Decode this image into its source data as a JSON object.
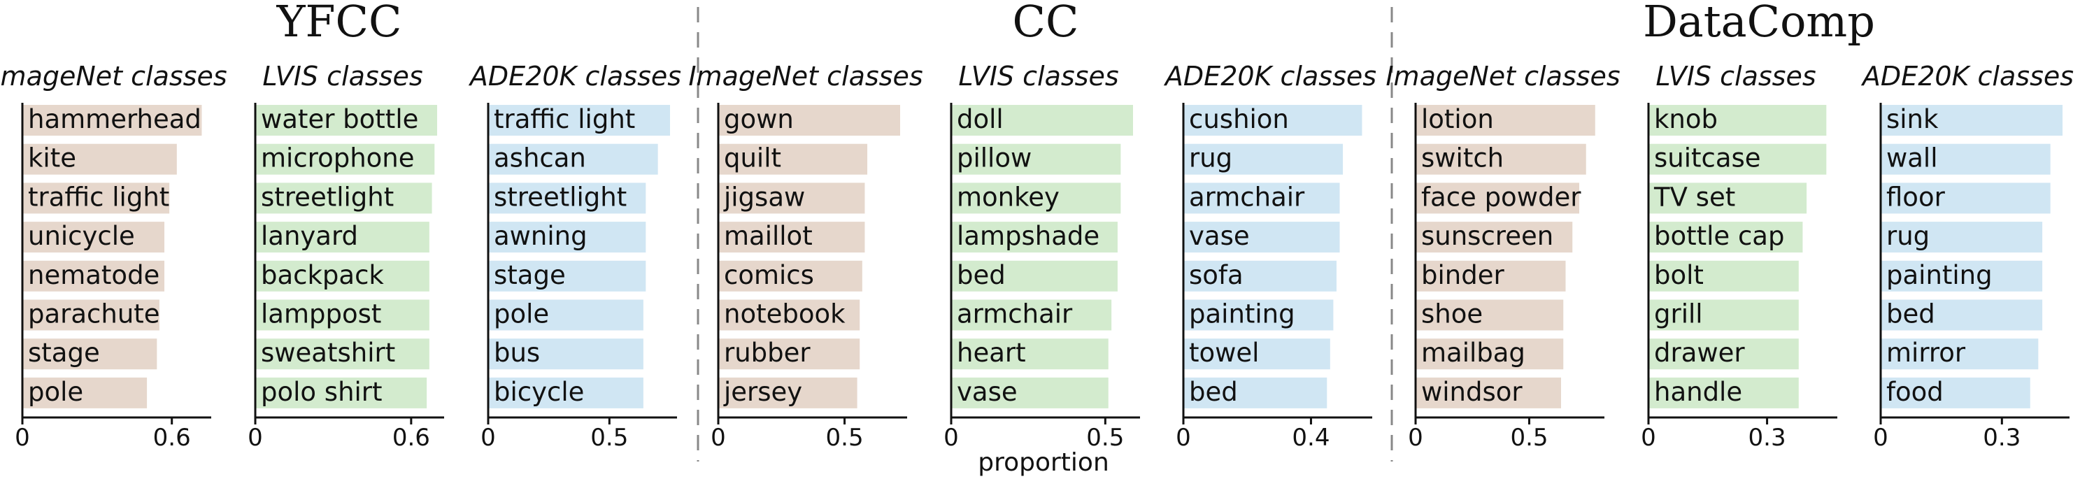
{
  "xlabel": "proportion",
  "colors": {
    "ImageNet": "#e6d7cc",
    "LVIS": "#d3ebce",
    "ADE20K": "#d0e6f3",
    "divider": "#888888"
  },
  "groups": [
    {
      "title": "YFCC"
    },
    {
      "title": "CC"
    },
    {
      "title": "DataComp"
    }
  ],
  "chart_data": [
    {
      "type": "bar",
      "group": "YFCC",
      "title": "ImageNet classes",
      "palette": "ImageNet",
      "ticks": [
        0,
        0.6
      ],
      "tick_labels": [
        "0",
        "0.6"
      ],
      "xlim": [
        0,
        0.73
      ],
      "categories": [
        "hammerhead",
        "kite",
        "traffic light",
        "unicycle",
        "nematode",
        "parachute",
        "stage",
        "pole"
      ],
      "values": [
        0.72,
        0.62,
        0.59,
        0.57,
        0.57,
        0.55,
        0.54,
        0.5
      ]
    },
    {
      "type": "bar",
      "group": "YFCC",
      "title": "LVIS classes",
      "palette": "LVIS",
      "ticks": [
        0,
        0.6
      ],
      "tick_labels": [
        "0",
        "0.6"
      ],
      "xlim": [
        0,
        0.7
      ],
      "categories": [
        "water bottle",
        "microphone",
        "streetlight",
        "lanyard",
        "backpack",
        "lamppost",
        "sweatshirt",
        "polo shirt"
      ],
      "values": [
        0.7,
        0.69,
        0.68,
        0.67,
        0.67,
        0.67,
        0.67,
        0.66
      ]
    },
    {
      "type": "bar",
      "group": "YFCC",
      "title": "ADE20K classes",
      "palette": "ADE20K",
      "ticks": [
        0,
        0.5
      ],
      "tick_labels": [
        "0",
        "0.5"
      ],
      "xlim": [
        0,
        0.75
      ],
      "categories": [
        "traffic light",
        "ashcan",
        "streetlight",
        "awning",
        "stage",
        "pole",
        "bus",
        "bicycle"
      ],
      "values": [
        0.75,
        0.7,
        0.65,
        0.65,
        0.65,
        0.64,
        0.64,
        0.64
      ]
    },
    {
      "type": "bar",
      "group": "CC",
      "title": "ImageNet classes",
      "palette": "ImageNet",
      "ticks": [
        0,
        0.5
      ],
      "tick_labels": [
        "0",
        "0.5"
      ],
      "xlim": [
        0,
        0.72
      ],
      "categories": [
        "gown",
        "quilt",
        "jigsaw",
        "maillot",
        "comics",
        "notebook",
        "rubber",
        "jersey"
      ],
      "values": [
        0.72,
        0.59,
        0.58,
        0.58,
        0.57,
        0.56,
        0.56,
        0.55
      ]
    },
    {
      "type": "bar",
      "group": "CC",
      "title": "LVIS classes",
      "palette": "LVIS",
      "ticks": [
        0,
        0.5
      ],
      "tick_labels": [
        "0",
        "0.5"
      ],
      "xlim": [
        0,
        0.59
      ],
      "categories": [
        "doll",
        "pillow",
        "monkey",
        "lampshade",
        "bed",
        "armchair",
        "heart",
        "vase"
      ],
      "values": [
        0.59,
        0.55,
        0.55,
        0.54,
        0.54,
        0.52,
        0.51,
        0.51
      ]
    },
    {
      "type": "bar",
      "group": "CC",
      "title": "ADE20K classes",
      "palette": "ADE20K",
      "ticks": [
        0,
        0.4
      ],
      "tick_labels": [
        "0",
        "0.4"
      ],
      "xlim": [
        0,
        0.57
      ],
      "categories": [
        "cushion",
        "rug",
        "armchair",
        "vase",
        "sofa",
        "painting",
        "towel",
        "bed"
      ],
      "values": [
        0.56,
        0.5,
        0.49,
        0.49,
        0.48,
        0.47,
        0.46,
        0.45
      ]
    },
    {
      "type": "bar",
      "group": "DataComp",
      "title": "ImageNet classes",
      "palette": "ImageNet",
      "ticks": [
        0,
        0.5
      ],
      "tick_labels": [
        "0",
        "0.5"
      ],
      "xlim": [
        0,
        0.8
      ],
      "categories": [
        "lotion",
        "switch",
        "face powder",
        "sunscreen",
        "binder",
        "shoe",
        "mailbag",
        "windsor"
      ],
      "values": [
        0.79,
        0.75,
        0.72,
        0.69,
        0.66,
        0.65,
        0.65,
        0.64
      ]
    },
    {
      "type": "bar",
      "group": "DataComp",
      "title": "LVIS classes",
      "palette": "LVIS",
      "ticks": [
        0,
        0.3
      ],
      "tick_labels": [
        "0",
        "0.3"
      ],
      "xlim": [
        0,
        0.46
      ],
      "categories": [
        "knob",
        "suitcase",
        "TV set",
        "bottle cap",
        "bolt",
        "grill",
        "drawer",
        "handle"
      ],
      "values": [
        0.45,
        0.45,
        0.4,
        0.39,
        0.38,
        0.38,
        0.38,
        0.38
      ]
    },
    {
      "type": "bar",
      "group": "DataComp",
      "title": "ADE20K classes",
      "palette": "ADE20K",
      "ticks": [
        0,
        0.3
      ],
      "tick_labels": [
        "0",
        "0.3"
      ],
      "xlim": [
        0,
        0.45
      ],
      "categories": [
        "sink",
        "wall",
        "floor",
        "rug",
        "painting",
        "bed",
        "mirror",
        "food"
      ],
      "values": [
        0.45,
        0.42,
        0.42,
        0.4,
        0.4,
        0.4,
        0.39,
        0.37
      ]
    }
  ]
}
